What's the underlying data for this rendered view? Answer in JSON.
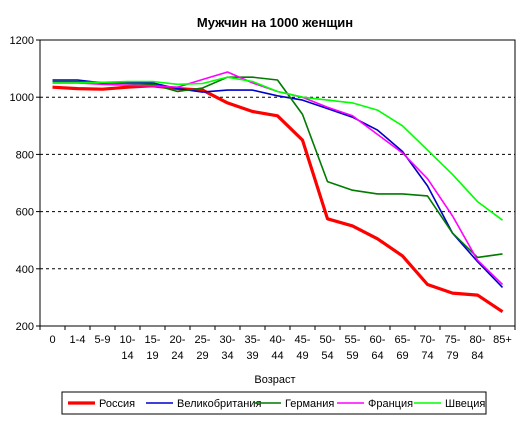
{
  "chart_data": {
    "type": "line",
    "title": "Мужчин на 1000 женщин",
    "xlabel": "Возраст",
    "ylabel": "",
    "ylim": [
      200,
      1200
    ],
    "yticks": [
      200,
      400,
      600,
      800,
      1000,
      1200
    ],
    "grid": "horizontal dashed",
    "legend_position": "bottom",
    "categories": [
      [
        "0",
        ""
      ],
      [
        "1-4",
        ""
      ],
      [
        "5-9",
        ""
      ],
      [
        "10-",
        "14"
      ],
      [
        "15-",
        "19"
      ],
      [
        "20-",
        "24"
      ],
      [
        "25-",
        "29"
      ],
      [
        "30-",
        "34"
      ],
      [
        "35-",
        "39"
      ],
      [
        "40-",
        "44"
      ],
      [
        "45-",
        "49"
      ],
      [
        "50-",
        "54"
      ],
      [
        "55-",
        "59"
      ],
      [
        "60-",
        "64"
      ],
      [
        "65-",
        "69"
      ],
      [
        "70-",
        "74"
      ],
      [
        "75-",
        "79"
      ],
      [
        "80-",
        "84"
      ],
      [
        "85+",
        ""
      ]
    ],
    "series": [
      {
        "name": "Россия",
        "color": "#ff0000",
        "width": 3.2,
        "values": [
          1035,
          1030,
          1028,
          1035,
          1040,
          1030,
          1025,
          980,
          950,
          935,
          850,
          575,
          550,
          505,
          445,
          345,
          315,
          308,
          250
        ]
      },
      {
        "name": "Великобритания",
        "color": "#0000c8",
        "width": 1.6,
        "values": [
          1060,
          1060,
          1050,
          1050,
          1050,
          1030,
          1018,
          1025,
          1025,
          1005,
          990,
          960,
          930,
          885,
          810,
          690,
          525,
          425,
          335
        ]
      },
      {
        "name": "Германия",
        "color": "#007a00",
        "width": 1.6,
        "values": [
          1055,
          1055,
          1052,
          1048,
          1045,
          1020,
          1032,
          1070,
          1070,
          1060,
          940,
          705,
          675,
          662,
          662,
          655,
          525,
          440,
          452
        ]
      },
      {
        "name": "Франция",
        "color": "#ff00ff",
        "width": 1.6,
        "values": [
          1050,
          1050,
          1045,
          1042,
          1040,
          1035,
          1062,
          1088,
          1050,
          1020,
          1000,
          965,
          935,
          870,
          805,
          715,
          585,
          430,
          345
        ]
      },
      {
        "name": "Швеция",
        "color": "#00ff00",
        "width": 1.6,
        "values": [
          1050,
          1050,
          1052,
          1055,
          1055,
          1045,
          1048,
          1070,
          1055,
          1020,
          1000,
          990,
          980,
          955,
          900,
          815,
          730,
          635,
          570
        ]
      }
    ]
  }
}
